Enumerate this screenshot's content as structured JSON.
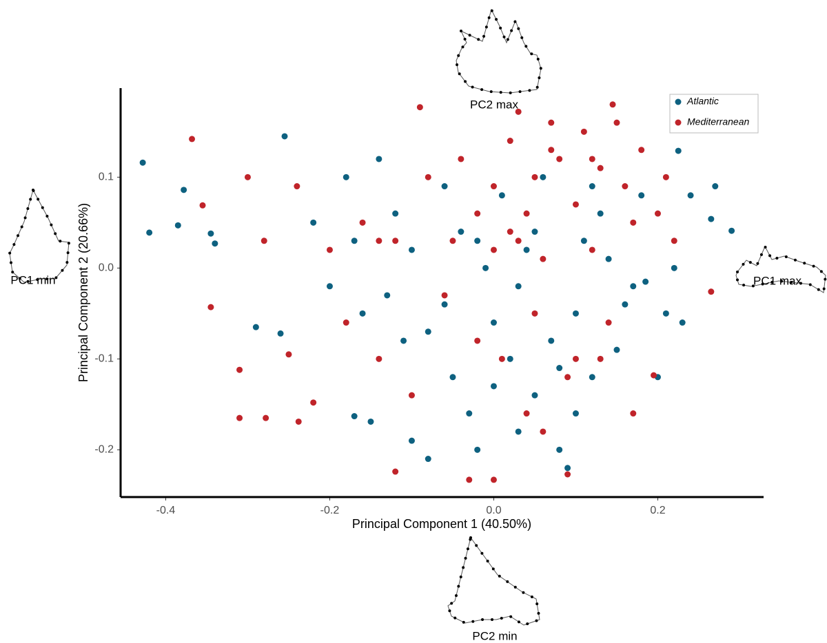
{
  "chart_data": {
    "type": "scatter",
    "x_label": "Principal Component 1 (40.50%)",
    "y_label": "Principal Component 2 (20.66%)",
    "annotations": [
      "PC2 max",
      "PC1 min",
      "PC1 max",
      "PC2 min"
    ],
    "xlim": [
      -0.455,
      0.329
    ],
    "ylim": [
      -0.252,
      0.198
    ],
    "xticks": [
      -0.4,
      -0.2,
      {
        "value": 0,
        "label": "0.0"
      },
      0.2
    ],
    "yticks": [
      -0.2,
      -0.1,
      {
        "value": 0,
        "label": "0.0"
      },
      0.1
    ],
    "grid": false,
    "legend": "top-right",
    "series": [
      {
        "name": "Atlantic",
        "color": "#0e6180",
        "x": [
          -0.428,
          -0.42,
          -0.385,
          -0.378,
          -0.345,
          -0.34,
          -0.29,
          -0.255,
          -0.26,
          -0.22,
          -0.2,
          -0.18,
          -0.17,
          -0.16,
          -0.14,
          -0.13,
          -0.12,
          -0.17,
          -0.15,
          -0.1,
          -0.08,
          -0.1,
          -0.08,
          -0.06,
          -0.05,
          -0.04,
          -0.03,
          -0.02,
          -0.01,
          0.0,
          0.01,
          0.02,
          0.03,
          0.04,
          0.05,
          0.06,
          0.07,
          0.08,
          0.09,
          0.1,
          0.11,
          0.12,
          0.13,
          0.15,
          0.17,
          0.18,
          0.2,
          0.21,
          0.225,
          0.24,
          0.265,
          0.29,
          0.27,
          0.22,
          0.16,
          0.14,
          0.05,
          -0.02,
          0.03,
          0.08,
          -0.06,
          0.1,
          0.0,
          -0.11,
          0.12,
          0.185,
          0.23
        ],
        "values": [
          0.116,
          0.039,
          0.047,
          0.086,
          0.038,
          0.027,
          -0.065,
          0.145,
          -0.072,
          0.05,
          -0.02,
          0.1,
          0.03,
          -0.05,
          0.12,
          -0.03,
          0.06,
          -0.163,
          -0.169,
          -0.19,
          -0.21,
          0.02,
          -0.07,
          0.09,
          -0.12,
          0.04,
          -0.16,
          -0.2,
          0.0,
          -0.06,
          0.08,
          -0.1,
          -0.18,
          0.02,
          -0.14,
          0.1,
          -0.08,
          -0.2,
          -0.22,
          -0.05,
          0.03,
          -0.12,
          0.06,
          -0.09,
          -0.02,
          0.08,
          -0.12,
          -0.05,
          0.129,
          0.08,
          0.054,
          0.041,
          0.09,
          0.0,
          -0.04,
          0.01,
          0.04,
          0.03,
          -0.02,
          -0.11,
          -0.04,
          -0.16,
          -0.13,
          -0.08,
          0.09,
          -0.015,
          -0.06
        ]
      },
      {
        "name": "Mediterranean",
        "color": "#c0242a",
        "x": [
          -0.368,
          -0.355,
          -0.31,
          -0.31,
          -0.278,
          -0.3,
          -0.28,
          -0.25,
          -0.24,
          -0.238,
          -0.22,
          -0.2,
          -0.18,
          -0.16,
          -0.14,
          -0.12,
          -0.1,
          -0.12,
          -0.08,
          -0.06,
          -0.04,
          -0.03,
          0.0,
          -0.02,
          0.0,
          0.01,
          0.02,
          0.03,
          0.04,
          0.05,
          0.06,
          0.07,
          0.08,
          0.09,
          0.09,
          0.1,
          0.11,
          0.12,
          0.13,
          0.14,
          0.15,
          0.16,
          0.17,
          0.17,
          0.18,
          0.2,
          0.21,
          0.22,
          0.195,
          0.265,
          -0.345,
          -0.02,
          0.05,
          0.1,
          -0.05,
          0.04,
          0.0,
          0.06,
          0.03,
          -0.09,
          0.145,
          0.07,
          0.12,
          0.02,
          -0.14,
          0.13
        ],
        "values": [
          0.142,
          0.069,
          -0.112,
          -0.165,
          -0.165,
          0.1,
          0.03,
          -0.095,
          0.09,
          -0.169,
          -0.148,
          0.02,
          -0.06,
          0.05,
          -0.1,
          0.03,
          -0.14,
          -0.224,
          0.1,
          -0.03,
          0.12,
          -0.233,
          -0.233,
          0.06,
          0.02,
          -0.1,
          0.14,
          0.03,
          -0.16,
          0.1,
          0.01,
          0.16,
          0.12,
          -0.12,
          -0.227,
          0.07,
          0.15,
          0.02,
          0.11,
          -0.06,
          0.16,
          0.09,
          0.05,
          -0.16,
          0.13,
          0.06,
          0.1,
          0.03,
          -0.118,
          -0.026,
          -0.043,
          -0.08,
          -0.05,
          -0.1,
          0.03,
          0.06,
          0.09,
          -0.18,
          0.172,
          0.177,
          0.18,
          0.13,
          0.12,
          0.04,
          0.03,
          -0.1
        ]
      }
    ]
  }
}
